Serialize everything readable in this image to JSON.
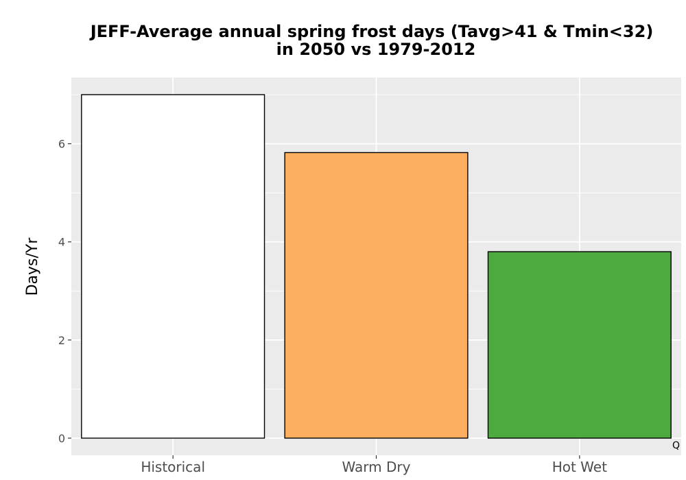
{
  "chart_data": {
    "type": "bar",
    "title_lines": [
      "JEFF-Average annual spring frost days (Tavg>41 & Tmin<32)",
      "in 2050 vs 1979-2012"
    ],
    "categories": [
      "Historical",
      "Warm Dry",
      "Hot Wet"
    ],
    "values": [
      7.0,
      5.82,
      3.8
    ],
    "bar_colors": [
      "#ffffff",
      "#fdae61",
      "#4daa3f"
    ],
    "xlabel": "",
    "ylabel": "Days/Yr",
    "ylim": [
      -0.35,
      7.35
    ],
    "yticks": [
      0,
      2,
      4,
      6
    ],
    "grid": true,
    "legend": "none",
    "panel_background": "#ebebeb",
    "corner_text": "Q"
  }
}
